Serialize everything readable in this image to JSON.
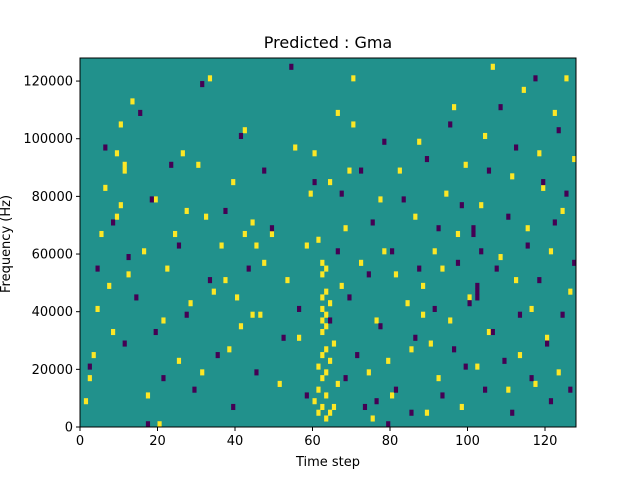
{
  "chart_data": {
    "type": "heatmap",
    "title": "Predicted : Gma",
    "xlabel": "Time step",
    "ylabel": "Frequency (Hz)",
    "xlim": [
      0,
      128
    ],
    "ylim": [
      0,
      128000
    ],
    "x_ticks": [
      0,
      20,
      40,
      60,
      80,
      100,
      120
    ],
    "y_ticks": [
      0,
      20000,
      40000,
      60000,
      80000,
      100000,
      120000
    ],
    "x_tick_labels": [
      "0",
      "20",
      "40",
      "60",
      "80",
      "100",
      "120"
    ],
    "y_tick_labels": [
      "0",
      "20000",
      "40000",
      "60000",
      "80000",
      "100000",
      "120000"
    ],
    "time_steps": 128,
    "frequency_bins": 64,
    "values_legend": {
      "-1": "low",
      "0": "neutral",
      "1": "high"
    },
    "colors": {
      "background": "#21918c",
      "high": "#fde725",
      "low": "#440154"
    },
    "high_cells": [
      [
        1,
        4
      ],
      [
        2,
        8
      ],
      [
        3,
        12
      ],
      [
        4,
        20
      ],
      [
        5,
        33
      ],
      [
        6,
        41
      ],
      [
        7,
        24
      ],
      [
        8,
        16
      ],
      [
        9,
        47
      ],
      [
        10,
        52
      ],
      [
        9,
        36
      ],
      [
        10,
        38
      ],
      [
        11,
        44
      ],
      [
        11,
        45
      ],
      [
        12,
        26
      ],
      [
        13,
        56
      ],
      [
        16,
        30
      ],
      [
        17,
        5
      ],
      [
        19,
        39
      ],
      [
        20,
        0
      ],
      [
        21,
        18
      ],
      [
        22,
        27
      ],
      [
        24,
        33
      ],
      [
        25,
        11
      ],
      [
        26,
        47
      ],
      [
        27,
        37
      ],
      [
        28,
        21
      ],
      [
        30,
        45
      ],
      [
        31,
        9
      ],
      [
        32,
        36
      ],
      [
        33,
        60
      ],
      [
        34,
        23
      ],
      [
        36,
        31
      ],
      [
        37,
        25
      ],
      [
        38,
        13
      ],
      [
        39,
        42
      ],
      [
        40,
        22
      ],
      [
        41,
        17
      ],
      [
        42,
        51
      ],
      [
        44,
        35
      ],
      [
        46,
        19
      ],
      [
        47,
        28
      ],
      [
        49,
        33
      ],
      [
        51,
        7
      ],
      [
        53,
        25
      ],
      [
        55,
        48
      ],
      [
        56,
        15
      ],
      [
        58,
        31
      ],
      [
        59,
        40
      ],
      [
        60,
        4
      ],
      [
        61,
        2
      ],
      [
        61,
        6
      ],
      [
        61,
        10
      ],
      [
        62,
        3
      ],
      [
        62,
        8
      ],
      [
        62,
        12
      ],
      [
        62,
        16
      ],
      [
        62,
        18
      ],
      [
        62,
        20
      ],
      [
        62,
        22
      ],
      [
        62,
        26
      ],
      [
        62,
        28
      ],
      [
        63,
        1
      ],
      [
        63,
        5
      ],
      [
        63,
        9
      ],
      [
        63,
        13
      ],
      [
        63,
        17
      ],
      [
        63,
        19
      ],
      [
        63,
        23
      ],
      [
        63,
        27
      ],
      [
        64,
        2
      ],
      [
        64,
        11
      ],
      [
        64,
        21
      ],
      [
        65,
        3
      ],
      [
        65,
        14
      ],
      [
        66,
        7
      ],
      [
        67,
        24
      ],
      [
        68,
        34
      ],
      [
        69,
        44
      ],
      [
        70,
        52
      ],
      [
        72,
        28
      ],
      [
        74,
        9
      ],
      [
        75,
        1
      ],
      [
        76,
        18
      ],
      [
        77,
        39
      ],
      [
        78,
        30
      ],
      [
        79,
        11
      ],
      [
        80,
        5
      ],
      [
        81,
        26
      ],
      [
        82,
        44
      ],
      [
        84,
        21
      ],
      [
        85,
        13
      ],
      [
        86,
        36
      ],
      [
        87,
        49
      ],
      [
        88,
        19
      ],
      [
        88,
        24
      ],
      [
        89,
        2
      ],
      [
        90,
        14
      ],
      [
        91,
        30
      ],
      [
        92,
        8
      ],
      [
        93,
        27
      ],
      [
        94,
        40
      ],
      [
        95,
        18
      ],
      [
        96,
        55
      ],
      [
        97,
        33
      ],
      [
        98,
        3
      ],
      [
        99,
        45
      ],
      [
        100,
        22
      ],
      [
        102,
        10
      ],
      [
        103,
        38
      ],
      [
        104,
        50
      ],
      [
        105,
        16
      ],
      [
        106,
        62
      ],
      [
        108,
        29
      ],
      [
        110,
        6
      ],
      [
        111,
        43
      ],
      [
        112,
        25
      ],
      [
        113,
        12
      ],
      [
        114,
        58
      ],
      [
        115,
        34
      ],
      [
        116,
        20
      ],
      [
        117,
        7
      ],
      [
        118,
        47
      ],
      [
        119,
        41
      ],
      [
        120,
        15
      ],
      [
        121,
        30
      ],
      [
        122,
        54
      ],
      [
        123,
        9
      ],
      [
        124,
        37
      ],
      [
        125,
        60
      ],
      [
        126,
        23
      ],
      [
        127,
        46
      ],
      [
        42,
        33
      ],
      [
        44,
        19
      ],
      [
        45,
        31
      ],
      [
        60,
        47
      ],
      [
        61,
        32
      ],
      [
        64,
        42
      ],
      [
        66,
        54
      ],
      [
        70,
        60
      ]
    ],
    "low_cells": [
      [
        2,
        10
      ],
      [
        4,
        27
      ],
      [
        6,
        48
      ],
      [
        8,
        35
      ],
      [
        11,
        14
      ],
      [
        12,
        29
      ],
      [
        14,
        22
      ],
      [
        15,
        54
      ],
      [
        17,
        0
      ],
      [
        18,
        39
      ],
      [
        19,
        16
      ],
      [
        21,
        8
      ],
      [
        23,
        45
      ],
      [
        25,
        31
      ],
      [
        27,
        19
      ],
      [
        29,
        6
      ],
      [
        31,
        59
      ],
      [
        33,
        25
      ],
      [
        35,
        12
      ],
      [
        37,
        37
      ],
      [
        39,
        3
      ],
      [
        41,
        50
      ],
      [
        43,
        27
      ],
      [
        45,
        9
      ],
      [
        47,
        44
      ],
      [
        49,
        34
      ],
      [
        52,
        15
      ],
      [
        54,
        62
      ],
      [
        56,
        20
      ],
      [
        58,
        5
      ],
      [
        60,
        42
      ],
      [
        64,
        18
      ],
      [
        66,
        30
      ],
      [
        67,
        40
      ],
      [
        68,
        8
      ],
      [
        69,
        22
      ],
      [
        71,
        12
      ],
      [
        72,
        44
      ],
      [
        73,
        3
      ],
      [
        74,
        26
      ],
      [
        75,
        35
      ],
      [
        76,
        4
      ],
      [
        77,
        17
      ],
      [
        78,
        49
      ],
      [
        79,
        0
      ],
      [
        80,
        30
      ],
      [
        81,
        6
      ],
      [
        83,
        39
      ],
      [
        85,
        2
      ],
      [
        86,
        15
      ],
      [
        87,
        27
      ],
      [
        89,
        46
      ],
      [
        91,
        20
      ],
      [
        92,
        34
      ],
      [
        93,
        5
      ],
      [
        95,
        52
      ],
      [
        96,
        13
      ],
      [
        97,
        28
      ],
      [
        98,
        38
      ],
      [
        99,
        10
      ],
      [
        100,
        21
      ],
      [
        101,
        33
      ],
      [
        101,
        34
      ],
      [
        102,
        22
      ],
      [
        102,
        23
      ],
      [
        102,
        24
      ],
      [
        103,
        30
      ],
      [
        104,
        6
      ],
      [
        105,
        44
      ],
      [
        106,
        16
      ],
      [
        107,
        27
      ],
      [
        108,
        55
      ],
      [
        109,
        11
      ],
      [
        110,
        36
      ],
      [
        111,
        2
      ],
      [
        112,
        48
      ],
      [
        113,
        19
      ],
      [
        115,
        31
      ],
      [
        116,
        8
      ],
      [
        117,
        60
      ],
      [
        118,
        25
      ],
      [
        119,
        42
      ],
      [
        120,
        14
      ],
      [
        121,
        4
      ],
      [
        122,
        35
      ],
      [
        123,
        51
      ],
      [
        124,
        19
      ],
      [
        125,
        40
      ],
      [
        126,
        6
      ],
      [
        127,
        28
      ]
    ]
  }
}
